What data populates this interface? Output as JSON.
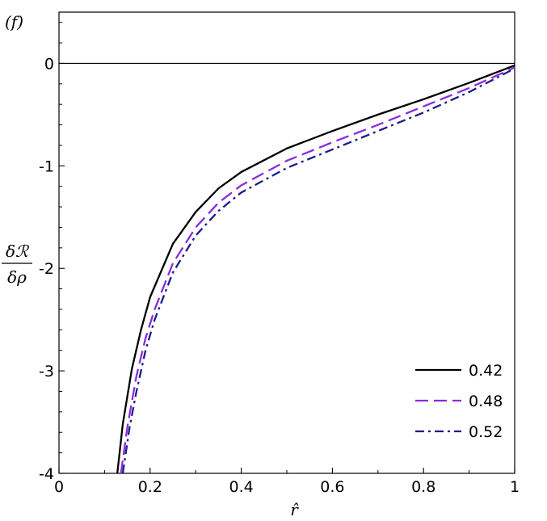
{
  "chart_data": {
    "type": "line",
    "panel_label": "(f)",
    "xlabel": "r̂",
    "ylabel_numerator": "δℛ",
    "ylabel_denominator": "δρ",
    "xlim": [
      0,
      1
    ],
    "ylim": [
      -4,
      0.5
    ],
    "x_ticks": [
      0,
      0.2,
      0.4,
      0.6,
      0.8,
      1
    ],
    "x_tick_labels": [
      "0",
      "0.2",
      "0.4",
      "0.6",
      "0.8",
      "1"
    ],
    "y_ticks": [
      0,
      -1,
      -2,
      -3,
      -4
    ],
    "y_tick_labels": [
      "0",
      "-1",
      "-2",
      "-3",
      "-4"
    ],
    "reference_line_y": 0,
    "legend_position": "bottom-right",
    "series": [
      {
        "name": "0.42",
        "color": "#000000",
        "dash": "solid",
        "x": [
          0.128,
          0.14,
          0.16,
          0.18,
          0.2,
          0.25,
          0.3,
          0.35,
          0.4,
          0.5,
          0.6,
          0.7,
          0.8,
          0.9,
          1.0
        ],
        "y": [
          -4.0,
          -3.52,
          -2.98,
          -2.6,
          -2.28,
          -1.76,
          -1.45,
          -1.22,
          -1.06,
          -0.83,
          -0.66,
          -0.5,
          -0.35,
          -0.19,
          -0.02
        ]
      },
      {
        "name": "0.48",
        "color": "#8a2be2",
        "dash": "long-dash",
        "x": [
          0.136,
          0.15,
          0.17,
          0.19,
          0.21,
          0.25,
          0.3,
          0.35,
          0.4,
          0.5,
          0.6,
          0.7,
          0.8,
          0.9,
          1.0
        ],
        "y": [
          -4.0,
          -3.55,
          -3.05,
          -2.68,
          -2.4,
          -1.95,
          -1.6,
          -1.36,
          -1.19,
          -0.95,
          -0.77,
          -0.6,
          -0.42,
          -0.24,
          -0.04
        ]
      },
      {
        "name": "0.52",
        "color": "#1c1c8c",
        "dash": "dash-dot",
        "x": [
          0.14,
          0.155,
          0.17,
          0.19,
          0.21,
          0.25,
          0.3,
          0.35,
          0.4,
          0.5,
          0.6,
          0.7,
          0.8,
          0.9,
          1.0
        ],
        "y": [
          -4.0,
          -3.55,
          -3.2,
          -2.8,
          -2.5,
          -2.04,
          -1.68,
          -1.44,
          -1.26,
          -1.02,
          -0.84,
          -0.66,
          -0.48,
          -0.28,
          -0.05
        ]
      }
    ]
  }
}
